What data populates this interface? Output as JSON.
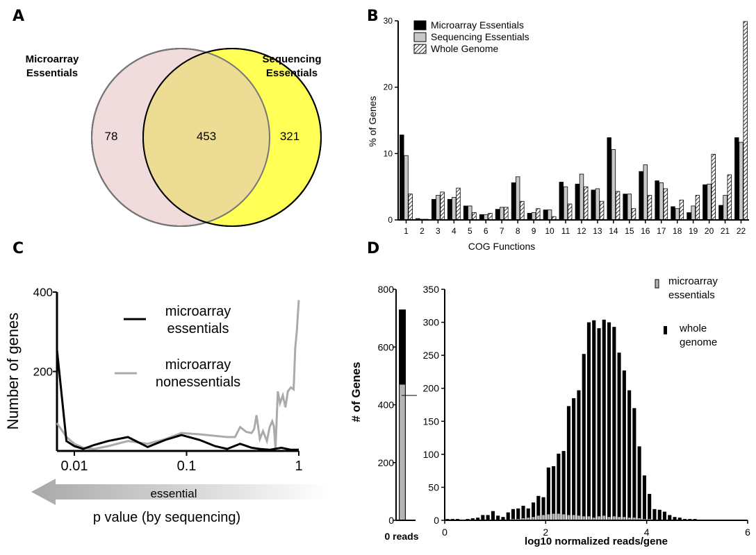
{
  "panels": {
    "a": "A",
    "b": "B",
    "c": "C",
    "d": "D"
  },
  "chart_data": [
    {
      "type": "venn",
      "sets": [
        {
          "label_line1": "Microarray",
          "label_line2": "Essentials",
          "only": 78,
          "color": "#f0dcdc"
        },
        {
          "label_line1": "Sequencing",
          "label_line2": "Essentials",
          "only": 321,
          "color": "#ffff55"
        }
      ],
      "overlap": 453,
      "overlap_color": "#ecdc94"
    },
    {
      "type": "bar",
      "xlabel": "COG Functions",
      "ylabel": "% of Genes",
      "ylim": [
        0,
        30
      ],
      "yticks": [
        0,
        10,
        20,
        30
      ],
      "legend_position": "top-left",
      "categories": [
        "1",
        "2",
        "3",
        "4",
        "5",
        "6",
        "7",
        "8",
        "9",
        "10",
        "11",
        "12",
        "13",
        "14",
        "15",
        "16",
        "17",
        "18",
        "19",
        "20",
        "21",
        "22"
      ],
      "series": [
        {
          "name": "Microarray Essentials",
          "fill": "#000000",
          "values": [
            12.8,
            0.2,
            3.1,
            3.1,
            2.1,
            0.8,
            1.6,
            5.6,
            1.0,
            1.5,
            5.7,
            5.4,
            4.5,
            12.4,
            3.9,
            7.3,
            5.9,
            2.0,
            1.1,
            5.3,
            2.2,
            12.4
          ]
        },
        {
          "name": "Sequencing Essentials",
          "fill": "#c8c8c8",
          "values": [
            9.7,
            0.1,
            3.7,
            3.4,
            2.1,
            0.8,
            1.9,
            6.5,
            1.1,
            1.5,
            5.0,
            6.9,
            4.7,
            10.6,
            3.9,
            8.3,
            5.6,
            1.7,
            2.1,
            5.4,
            3.7,
            11.7
          ]
        },
        {
          "name": "Whole Genome",
          "fill": "hatch",
          "values": [
            3.9,
            0.1,
            4.2,
            4.8,
            1.1,
            1.0,
            1.9,
            2.8,
            1.7,
            0.5,
            2.4,
            5.0,
            2.8,
            4.3,
            1.7,
            3.7,
            4.7,
            3.0,
            3.7,
            9.9,
            6.8,
            29.9
          ]
        }
      ]
    },
    {
      "type": "line",
      "xlabel": "p value (by sequencing)",
      "ylabel": "Number of genes",
      "xscale": "log",
      "xlim": [
        0.007,
        1
      ],
      "ylim": [
        0,
        400
      ],
      "xticks": [
        0.01,
        0.1,
        1
      ],
      "xtick_labels": [
        "0.01",
        "0.1",
        "1"
      ],
      "yticks": [
        200,
        400
      ],
      "arrow_label": "essential",
      "series": [
        {
          "name_line1": "microarray",
          "name_line2": "essentials",
          "color": "#000000",
          "x": [
            0.007,
            0.0085,
            0.01,
            0.012,
            0.015,
            0.02,
            0.03,
            0.045,
            0.065,
            0.09,
            0.13,
            0.18,
            0.23,
            0.3,
            0.38,
            0.45,
            0.55,
            0.7,
            0.85,
            1.0
          ],
          "y": [
            255,
            25,
            12,
            5,
            15,
            25,
            35,
            10,
            28,
            40,
            28,
            12,
            5,
            18,
            8,
            5,
            3,
            8,
            3,
            3
          ]
        },
        {
          "name_line1": "microarray",
          "name_line2": "nonessentials",
          "color": "#aaaaaa",
          "x": [
            0.007,
            0.0085,
            0.01,
            0.012,
            0.015,
            0.02,
            0.03,
            0.045,
            0.065,
            0.09,
            0.13,
            0.18,
            0.23,
            0.27,
            0.3,
            0.34,
            0.38,
            0.4,
            0.42,
            0.45,
            0.48,
            0.52,
            0.55,
            0.58,
            0.6,
            0.62,
            0.65,
            0.68,
            0.72,
            0.76,
            0.8,
            0.85,
            0.9,
            0.93,
            0.96,
            1.0
          ],
          "y": [
            70,
            35,
            18,
            8,
            5,
            12,
            25,
            18,
            30,
            45,
            42,
            38,
            35,
            35,
            60,
            48,
            45,
            55,
            90,
            30,
            50,
            25,
            60,
            75,
            62,
            5,
            150,
            120,
            140,
            110,
            150,
            160,
            155,
            260,
            300,
            380
          ]
        }
      ]
    },
    {
      "type": "histogram",
      "xlabel": "log10 normalized reads/gene",
      "ylabel": "# of Genes",
      "legend": [
        {
          "name_line1": "microarray",
          "name_line2": "essentials",
          "fill": "#b4b4b4"
        },
        {
          "name_line1": "whole",
          "name_line2": "genome",
          "fill": "#000000"
        }
      ],
      "zero_reads": {
        "label": "0 reads",
        "ylim": [
          0,
          800
        ],
        "yticks": [
          0,
          200,
          400,
          600,
          800
        ],
        "whole_genome": 730,
        "microarray_essentials": 470
      },
      "xlim": [
        0,
        6
      ],
      "ylim": [
        0,
        350
      ],
      "xticks": [
        0,
        2,
        4,
        6
      ],
      "yticks": [
        0,
        50,
        100,
        150,
        200,
        250,
        300,
        350
      ],
      "bin_centers": [
        0.0,
        0.1,
        0.2,
        0.3,
        0.4,
        0.5,
        0.6,
        0.7,
        0.8,
        0.9,
        1.0,
        1.1,
        1.2,
        1.3,
        1.4,
        1.5,
        1.6,
        1.7,
        1.8,
        1.9,
        2.0,
        2.1,
        2.2,
        2.3,
        2.4,
        2.5,
        2.6,
        2.7,
        2.8,
        2.9,
        3.0,
        3.1,
        3.2,
        3.3,
        3.4,
        3.5,
        3.6,
        3.7,
        3.8,
        3.9,
        4.0,
        4.1,
        4.2,
        4.3,
        4.4,
        4.5,
        4.6,
        4.7,
        4.8,
        4.9,
        5.0,
        5.1,
        5.2,
        5.3
      ],
      "whole_genome": [
        2,
        2,
        2,
        1,
        2,
        3,
        4,
        8,
        8,
        14,
        7,
        5,
        12,
        17,
        18,
        22,
        18,
        27,
        37,
        35,
        80,
        82,
        101,
        105,
        173,
        185,
        197,
        252,
        300,
        303,
        291,
        304,
        300,
        293,
        254,
        227,
        197,
        170,
        112,
        68,
        40,
        17,
        16,
        13,
        8,
        5,
        4,
        2,
        2,
        2,
        1,
        1,
        0,
        1
      ],
      "microarray_essentials": [
        0,
        0,
        0,
        0,
        0,
        0,
        0,
        0,
        0,
        1,
        1,
        0,
        1,
        2,
        2,
        3,
        4,
        5,
        7,
        8,
        9,
        10,
        10,
        9,
        8,
        8,
        7,
        6,
        6,
        4,
        6,
        7,
        5,
        6,
        5,
        5,
        4,
        4,
        3,
        2,
        2,
        1,
        1,
        1,
        0,
        0,
        0,
        0,
        0,
        0,
        0,
        0,
        0,
        0
      ]
    }
  ]
}
